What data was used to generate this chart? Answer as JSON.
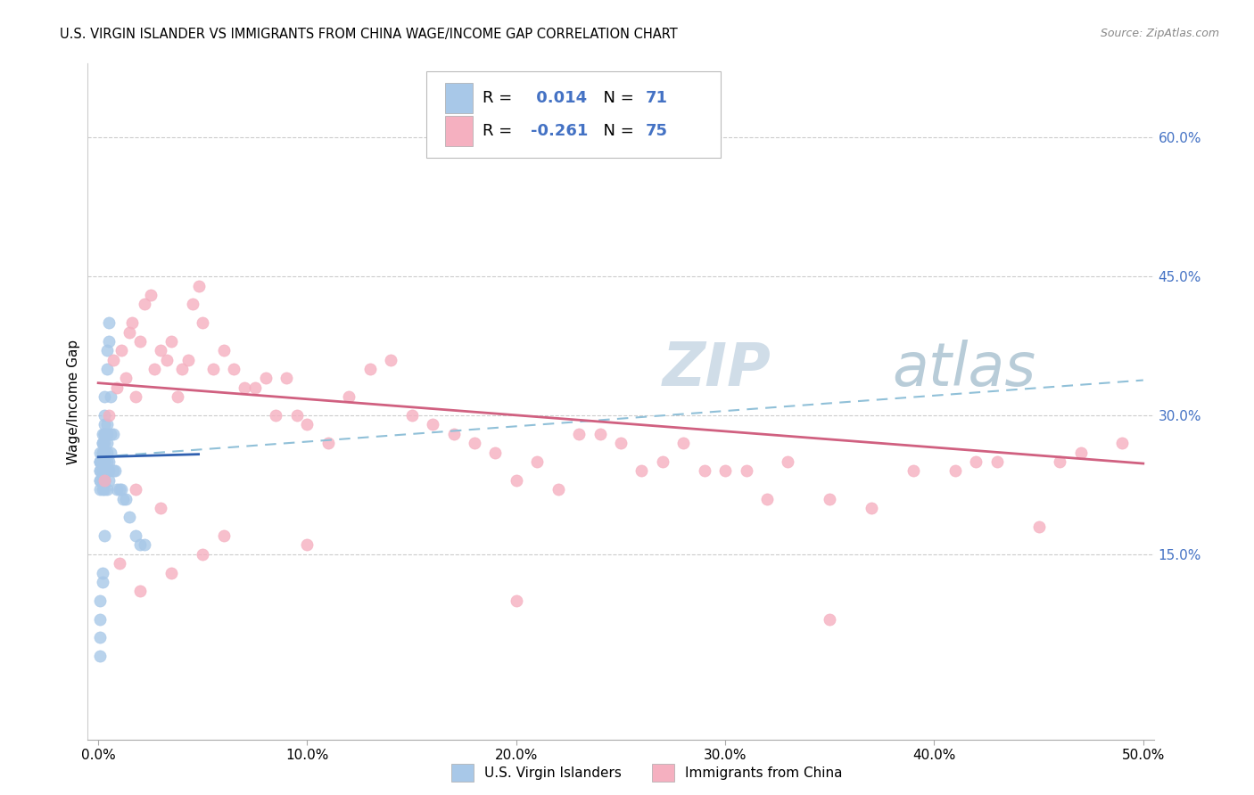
{
  "title": "U.S. VIRGIN ISLANDER VS IMMIGRANTS FROM CHINA WAGE/INCOME GAP CORRELATION CHART",
  "source": "Source: ZipAtlas.com",
  "ylabel": "Wage/Income Gap",
  "xlim": [
    -0.005,
    0.505
  ],
  "ylim": [
    -0.05,
    0.68
  ],
  "xticks": [
    0.0,
    0.1,
    0.2,
    0.3,
    0.4,
    0.5
  ],
  "xticklabels": [
    "0.0%",
    "10.0%",
    "20.0%",
    "30.0%",
    "40.0%",
    "50.0%"
  ],
  "yticks_right": [
    0.15,
    0.3,
    0.45,
    0.6
  ],
  "yticklabels_right": [
    "15.0%",
    "30.0%",
    "45.0%",
    "60.0%"
  ],
  "legend_r_blue": "0.014",
  "legend_n_blue": "71",
  "legend_r_pink": "-0.261",
  "legend_n_pink": "75",
  "blue_color": "#a8c8e8",
  "pink_color": "#f5b0c0",
  "blue_line_color": "#3060b0",
  "pink_line_color": "#d06080",
  "dashed_line_color": "#90c0d8",
  "watermark_color": "#d0dde8",
  "blue_line_x": [
    0.0,
    0.048
  ],
  "blue_line_y": [
    0.255,
    0.258
  ],
  "pink_line_x": [
    0.0,
    0.5
  ],
  "pink_line_y": [
    0.335,
    0.248
  ],
  "dash_line_x": [
    0.0,
    0.5
  ],
  "dash_line_y": [
    0.255,
    0.338
  ],
  "blue_x": [
    0.001,
    0.001,
    0.001,
    0.001,
    0.001,
    0.001,
    0.001,
    0.001,
    0.001,
    0.002,
    0.002,
    0.002,
    0.002,
    0.002,
    0.002,
    0.002,
    0.002,
    0.002,
    0.002,
    0.002,
    0.002,
    0.003,
    0.003,
    0.003,
    0.003,
    0.003,
    0.003,
    0.003,
    0.003,
    0.003,
    0.003,
    0.003,
    0.003,
    0.003,
    0.003,
    0.004,
    0.004,
    0.004,
    0.004,
    0.004,
    0.004,
    0.004,
    0.004,
    0.004,
    0.005,
    0.005,
    0.005,
    0.005,
    0.005,
    0.006,
    0.006,
    0.006,
    0.007,
    0.007,
    0.008,
    0.009,
    0.01,
    0.011,
    0.012,
    0.013,
    0.015,
    0.018,
    0.02,
    0.022,
    0.001,
    0.001,
    0.001,
    0.001,
    0.002,
    0.002,
    0.003
  ],
  "blue_y": [
    0.22,
    0.23,
    0.23,
    0.24,
    0.24,
    0.25,
    0.25,
    0.25,
    0.26,
    0.22,
    0.23,
    0.24,
    0.24,
    0.24,
    0.25,
    0.25,
    0.26,
    0.26,
    0.27,
    0.27,
    0.28,
    0.22,
    0.23,
    0.23,
    0.24,
    0.24,
    0.25,
    0.25,
    0.26,
    0.27,
    0.28,
    0.28,
    0.29,
    0.3,
    0.32,
    0.22,
    0.24,
    0.25,
    0.26,
    0.27,
    0.28,
    0.29,
    0.35,
    0.37,
    0.23,
    0.24,
    0.25,
    0.38,
    0.4,
    0.26,
    0.28,
    0.32,
    0.24,
    0.28,
    0.24,
    0.22,
    0.22,
    0.22,
    0.21,
    0.21,
    0.19,
    0.17,
    0.16,
    0.16,
    0.06,
    0.04,
    0.08,
    0.1,
    0.12,
    0.13,
    0.17
  ],
  "pink_x": [
    0.003,
    0.005,
    0.007,
    0.009,
    0.011,
    0.013,
    0.015,
    0.016,
    0.018,
    0.02,
    0.022,
    0.025,
    0.027,
    0.03,
    0.033,
    0.035,
    0.038,
    0.04,
    0.043,
    0.045,
    0.048,
    0.05,
    0.055,
    0.06,
    0.065,
    0.07,
    0.075,
    0.08,
    0.085,
    0.09,
    0.095,
    0.1,
    0.11,
    0.12,
    0.13,
    0.14,
    0.15,
    0.16,
    0.17,
    0.18,
    0.19,
    0.2,
    0.21,
    0.22,
    0.23,
    0.24,
    0.25,
    0.26,
    0.27,
    0.28,
    0.29,
    0.3,
    0.31,
    0.32,
    0.33,
    0.35,
    0.37,
    0.39,
    0.41,
    0.43,
    0.45,
    0.47,
    0.49,
    0.01,
    0.02,
    0.035,
    0.06,
    0.1,
    0.2,
    0.35,
    0.42,
    0.46,
    0.018,
    0.03,
    0.05
  ],
  "pink_y": [
    0.23,
    0.3,
    0.36,
    0.33,
    0.37,
    0.34,
    0.39,
    0.4,
    0.32,
    0.38,
    0.42,
    0.43,
    0.35,
    0.37,
    0.36,
    0.38,
    0.32,
    0.35,
    0.36,
    0.42,
    0.44,
    0.4,
    0.35,
    0.37,
    0.35,
    0.33,
    0.33,
    0.34,
    0.3,
    0.34,
    0.3,
    0.29,
    0.27,
    0.32,
    0.35,
    0.36,
    0.3,
    0.29,
    0.28,
    0.27,
    0.26,
    0.23,
    0.25,
    0.22,
    0.28,
    0.28,
    0.27,
    0.24,
    0.25,
    0.27,
    0.24,
    0.24,
    0.24,
    0.21,
    0.25,
    0.21,
    0.2,
    0.24,
    0.24,
    0.25,
    0.18,
    0.26,
    0.27,
    0.14,
    0.11,
    0.13,
    0.17,
    0.16,
    0.1,
    0.08,
    0.25,
    0.25,
    0.22,
    0.2,
    0.15
  ]
}
